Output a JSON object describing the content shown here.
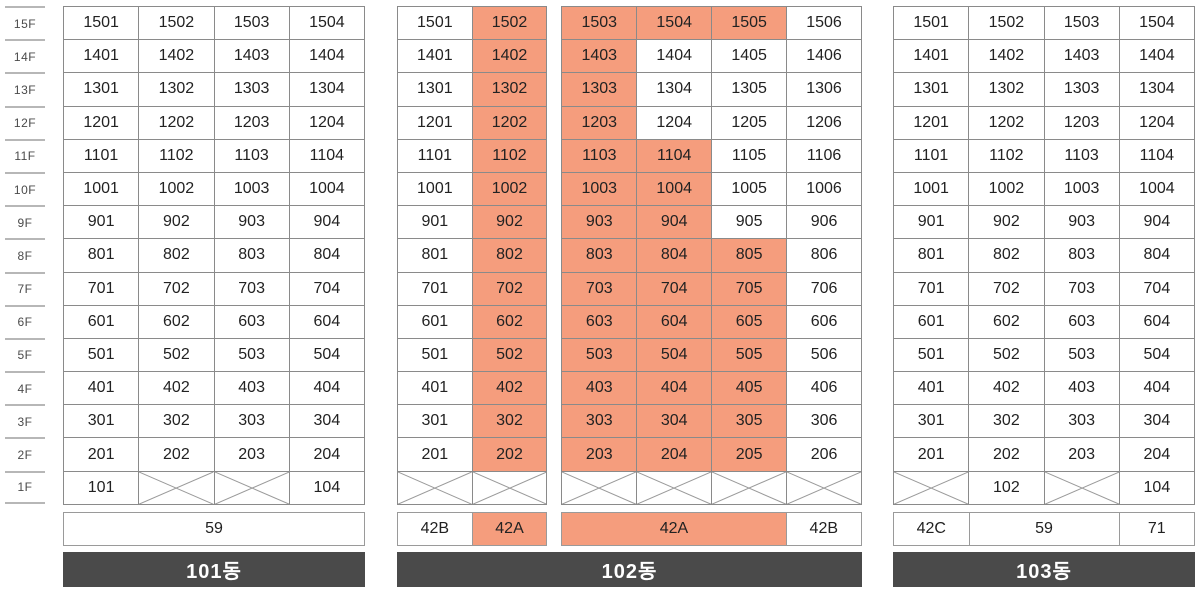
{
  "legend": {
    "cell_keys": {
      "u": "unit number label",
      "hl": "unit highlighted (salmon)",
      "x": "crossed-out / unavailable cell"
    },
    "type_row": "unit size/type label shown under each column group"
  },
  "palette": {
    "highlight": "#f59d7d",
    "cell_border": "#8a8a8a",
    "cross_line": "#9a9a9a",
    "floor_line": "#b7b7b7",
    "bar_background": "#4a4a4a",
    "bar_text": "#ffffff",
    "cell_text": "#222222"
  },
  "floors": [
    "15F",
    "14F",
    "13F",
    "12F",
    "11F",
    "10F",
    "9F",
    "8F",
    "7F",
    "6F",
    "5F",
    "4F",
    "3F",
    "2F",
    "1F"
  ],
  "buildings": [
    {
      "key": "101",
      "name": "101동",
      "sections": [
        {
          "columns": 4,
          "rows": [
            [
              {
                "u": "1501"
              },
              {
                "u": "1502"
              },
              {
                "u": "1503"
              },
              {
                "u": "1504"
              }
            ],
            [
              {
                "u": "1401"
              },
              {
                "u": "1402"
              },
              {
                "u": "1403"
              },
              {
                "u": "1404"
              }
            ],
            [
              {
                "u": "1301"
              },
              {
                "u": "1302"
              },
              {
                "u": "1303"
              },
              {
                "u": "1304"
              }
            ],
            [
              {
                "u": "1201"
              },
              {
                "u": "1202"
              },
              {
                "u": "1203"
              },
              {
                "u": "1204"
              }
            ],
            [
              {
                "u": "1101"
              },
              {
                "u": "1102"
              },
              {
                "u": "1103"
              },
              {
                "u": "1104"
              }
            ],
            [
              {
                "u": "1001"
              },
              {
                "u": "1002"
              },
              {
                "u": "1003"
              },
              {
                "u": "1004"
              }
            ],
            [
              {
                "u": "901"
              },
              {
                "u": "902"
              },
              {
                "u": "903"
              },
              {
                "u": "904"
              }
            ],
            [
              {
                "u": "801"
              },
              {
                "u": "802"
              },
              {
                "u": "803"
              },
              {
                "u": "804"
              }
            ],
            [
              {
                "u": "701"
              },
              {
                "u": "702"
              },
              {
                "u": "703"
              },
              {
                "u": "704"
              }
            ],
            [
              {
                "u": "601"
              },
              {
                "u": "602"
              },
              {
                "u": "603"
              },
              {
                "u": "604"
              }
            ],
            [
              {
                "u": "501"
              },
              {
                "u": "502"
              },
              {
                "u": "503"
              },
              {
                "u": "504"
              }
            ],
            [
              {
                "u": "401"
              },
              {
                "u": "402"
              },
              {
                "u": "403"
              },
              {
                "u": "404"
              }
            ],
            [
              {
                "u": "301"
              },
              {
                "u": "302"
              },
              {
                "u": "303"
              },
              {
                "u": "304"
              }
            ],
            [
              {
                "u": "201"
              },
              {
                "u": "202"
              },
              {
                "u": "203"
              },
              {
                "u": "204"
              }
            ],
            [
              {
                "u": "101"
              },
              {
                "x": true
              },
              {
                "x": true
              },
              {
                "u": "104"
              }
            ]
          ],
          "types": [
            {
              "label": "59",
              "span": 4,
              "hl": false
            }
          ]
        }
      ]
    },
    {
      "key": "102",
      "name": "102동",
      "sections": [
        {
          "columns": 2,
          "rows": [
            [
              {
                "u": "1501"
              },
              {
                "u": "1502",
                "hl": true
              }
            ],
            [
              {
                "u": "1401"
              },
              {
                "u": "1402",
                "hl": true
              }
            ],
            [
              {
                "u": "1301"
              },
              {
                "u": "1302",
                "hl": true
              }
            ],
            [
              {
                "u": "1201"
              },
              {
                "u": "1202",
                "hl": true
              }
            ],
            [
              {
                "u": "1101"
              },
              {
                "u": "1102",
                "hl": true
              }
            ],
            [
              {
                "u": "1001"
              },
              {
                "u": "1002",
                "hl": true
              }
            ],
            [
              {
                "u": "901"
              },
              {
                "u": "902",
                "hl": true
              }
            ],
            [
              {
                "u": "801"
              },
              {
                "u": "802",
                "hl": true
              }
            ],
            [
              {
                "u": "701"
              },
              {
                "u": "702",
                "hl": true
              }
            ],
            [
              {
                "u": "601"
              },
              {
                "u": "602",
                "hl": true
              }
            ],
            [
              {
                "u": "501"
              },
              {
                "u": "502",
                "hl": true
              }
            ],
            [
              {
                "u": "401"
              },
              {
                "u": "402",
                "hl": true
              }
            ],
            [
              {
                "u": "301"
              },
              {
                "u": "302",
                "hl": true
              }
            ],
            [
              {
                "u": "201"
              },
              {
                "u": "202",
                "hl": true
              }
            ],
            [
              {
                "x": true
              },
              {
                "x": true
              }
            ]
          ],
          "types": [
            {
              "label": "42B",
              "span": 1,
              "hl": false
            },
            {
              "label": "42A",
              "span": 1,
              "hl": true
            }
          ]
        },
        {
          "columns": 4,
          "rows": [
            [
              {
                "u": "1503",
                "hl": true
              },
              {
                "u": "1504",
                "hl": true
              },
              {
                "u": "1505",
                "hl": true
              },
              {
                "u": "1506"
              }
            ],
            [
              {
                "u": "1403",
                "hl": true
              },
              {
                "u": "1404"
              },
              {
                "u": "1405"
              },
              {
                "u": "1406"
              }
            ],
            [
              {
                "u": "1303",
                "hl": true
              },
              {
                "u": "1304"
              },
              {
                "u": "1305"
              },
              {
                "u": "1306"
              }
            ],
            [
              {
                "u": "1203",
                "hl": true
              },
              {
                "u": "1204"
              },
              {
                "u": "1205"
              },
              {
                "u": "1206"
              }
            ],
            [
              {
                "u": "1103",
                "hl": true
              },
              {
                "u": "1104",
                "hl": true
              },
              {
                "u": "1105"
              },
              {
                "u": "1106"
              }
            ],
            [
              {
                "u": "1003",
                "hl": true
              },
              {
                "u": "1004",
                "hl": true
              },
              {
                "u": "1005"
              },
              {
                "u": "1006"
              }
            ],
            [
              {
                "u": "903",
                "hl": true
              },
              {
                "u": "904",
                "hl": true
              },
              {
                "u": "905"
              },
              {
                "u": "906"
              }
            ],
            [
              {
                "u": "803",
                "hl": true
              },
              {
                "u": "804",
                "hl": true
              },
              {
                "u": "805",
                "hl": true
              },
              {
                "u": "806"
              }
            ],
            [
              {
                "u": "703",
                "hl": true
              },
              {
                "u": "704",
                "hl": true
              },
              {
                "u": "705",
                "hl": true
              },
              {
                "u": "706"
              }
            ],
            [
              {
                "u": "603",
                "hl": true
              },
              {
                "u": "604",
                "hl": true
              },
              {
                "u": "605",
                "hl": true
              },
              {
                "u": "606"
              }
            ],
            [
              {
                "u": "503",
                "hl": true
              },
              {
                "u": "504",
                "hl": true
              },
              {
                "u": "505",
                "hl": true
              },
              {
                "u": "506"
              }
            ],
            [
              {
                "u": "403",
                "hl": true
              },
              {
                "u": "404",
                "hl": true
              },
              {
                "u": "405",
                "hl": true
              },
              {
                "u": "406"
              }
            ],
            [
              {
                "u": "303",
                "hl": true
              },
              {
                "u": "304",
                "hl": true
              },
              {
                "u": "305",
                "hl": true
              },
              {
                "u": "306"
              }
            ],
            [
              {
                "u": "203",
                "hl": true
              },
              {
                "u": "204",
                "hl": true
              },
              {
                "u": "205",
                "hl": true
              },
              {
                "u": "206"
              }
            ],
            [
              {
                "x": true
              },
              {
                "x": true
              },
              {
                "x": true
              },
              {
                "x": true
              }
            ]
          ],
          "types": [
            {
              "label": "42A",
              "span": 3,
              "hl": true
            },
            {
              "label": "42B",
              "span": 1,
              "hl": false
            }
          ]
        }
      ]
    },
    {
      "key": "103",
      "name": "103동",
      "sections": [
        {
          "columns": 4,
          "rows": [
            [
              {
                "u": "1501"
              },
              {
                "u": "1502"
              },
              {
                "u": "1503"
              },
              {
                "u": "1504"
              }
            ],
            [
              {
                "u": "1401"
              },
              {
                "u": "1402"
              },
              {
                "u": "1403"
              },
              {
                "u": "1404"
              }
            ],
            [
              {
                "u": "1301"
              },
              {
                "u": "1302"
              },
              {
                "u": "1303"
              },
              {
                "u": "1304"
              }
            ],
            [
              {
                "u": "1201"
              },
              {
                "u": "1202"
              },
              {
                "u": "1203"
              },
              {
                "u": "1204"
              }
            ],
            [
              {
                "u": "1101"
              },
              {
                "u": "1102"
              },
              {
                "u": "1103"
              },
              {
                "u": "1104"
              }
            ],
            [
              {
                "u": "1001"
              },
              {
                "u": "1002"
              },
              {
                "u": "1003"
              },
              {
                "u": "1004"
              }
            ],
            [
              {
                "u": "901"
              },
              {
                "u": "902"
              },
              {
                "u": "903"
              },
              {
                "u": "904"
              }
            ],
            [
              {
                "u": "801"
              },
              {
                "u": "802"
              },
              {
                "u": "803"
              },
              {
                "u": "804"
              }
            ],
            [
              {
                "u": "701"
              },
              {
                "u": "702"
              },
              {
                "u": "703"
              },
              {
                "u": "704"
              }
            ],
            [
              {
                "u": "601"
              },
              {
                "u": "602"
              },
              {
                "u": "603"
              },
              {
                "u": "604"
              }
            ],
            [
              {
                "u": "501"
              },
              {
                "u": "502"
              },
              {
                "u": "503"
              },
              {
                "u": "504"
              }
            ],
            [
              {
                "u": "401"
              },
              {
                "u": "402"
              },
              {
                "u": "403"
              },
              {
                "u": "404"
              }
            ],
            [
              {
                "u": "301"
              },
              {
                "u": "302"
              },
              {
                "u": "303"
              },
              {
                "u": "304"
              }
            ],
            [
              {
                "u": "201"
              },
              {
                "u": "202"
              },
              {
                "u": "203"
              },
              {
                "u": "204"
              }
            ],
            [
              {
                "x": true
              },
              {
                "u": "102"
              },
              {
                "x": true
              },
              {
                "u": "104"
              }
            ]
          ],
          "types": [
            {
              "label": "42C",
              "span": 1,
              "hl": false
            },
            {
              "label": "59",
              "span": 2,
              "hl": false
            },
            {
              "label": "71",
              "span": 1,
              "hl": false
            }
          ]
        }
      ]
    }
  ]
}
